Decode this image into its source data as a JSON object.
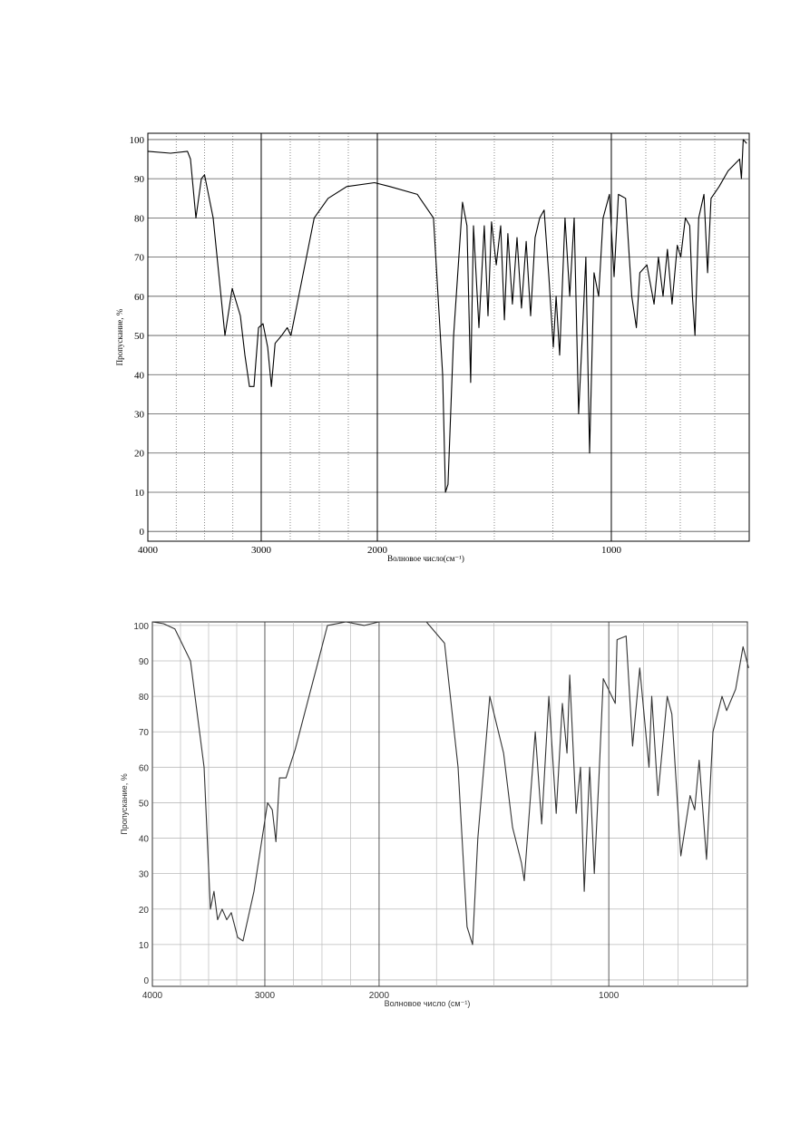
{
  "chart_data": [
    {
      "type": "line",
      "color": "#000000",
      "grid": true,
      "xlabel": "Волновое число(см⁻¹)",
      "ylabel": "Пропускание, %",
      "xlim": [
        4000,
        400
      ],
      "ylim": [
        -2.5,
        101.6
      ],
      "xticks": [
        4000,
        3000,
        2000,
        1000
      ],
      "yticks": [
        0,
        10,
        20,
        30,
        40,
        50,
        60,
        70,
        80,
        90,
        100
      ],
      "x": [
        4000,
        3800,
        3650,
        3624,
        3576,
        3528,
        3500,
        3424,
        3320,
        3256,
        3184,
        3144,
        3104,
        3064,
        3024,
        2984,
        2944,
        2912,
        2880,
        2824,
        2776,
        2744,
        2664,
        2544,
        2424,
        2264,
        2024,
        1946,
        1829,
        1760,
        1721,
        1709,
        1698,
        1674,
        1636,
        1617,
        1601,
        1589,
        1566,
        1543,
        1527,
        1512,
        1492,
        1473,
        1457,
        1442,
        1423,
        1403,
        1384,
        1364,
        1345,
        1326,
        1306,
        1287,
        1267,
        1248,
        1236,
        1221,
        1198,
        1178,
        1159,
        1140,
        1124,
        1109,
        1093,
        1074,
        1054,
        1035,
        1008,
        988,
        969,
        938,
        911,
        891,
        876,
        845,
        814,
        795,
        775,
        756,
        736,
        713,
        698,
        678,
        659,
        647,
        636,
        620,
        597,
        581,
        566,
        531,
        492,
        442,
        434,
        426,
        411
      ],
      "values": [
        97,
        96.5,
        97,
        95,
        80,
        90,
        91,
        80,
        50,
        62,
        55,
        45,
        37,
        37,
        52,
        53,
        47,
        37,
        48,
        50,
        52,
        50,
        62,
        80,
        85,
        88,
        89,
        88,
        86,
        80,
        40,
        10,
        12,
        50,
        84,
        78,
        38,
        78,
        52,
        78,
        55,
        79,
        68,
        78,
        54,
        76,
        58,
        75,
        57,
        74,
        55,
        75,
        80,
        82,
        65,
        47,
        60,
        45,
        80,
        60,
        80,
        30,
        50,
        70,
        20,
        66,
        60,
        80,
        86,
        65,
        86,
        85,
        60,
        52,
        66,
        68,
        58,
        70,
        60,
        72,
        58,
        73,
        70,
        80,
        78,
        60,
        50,
        80,
        86,
        66,
        85,
        88,
        92,
        95,
        90,
        100,
        99
      ]
    },
    {
      "type": "line",
      "color": "#333333",
      "grid": true,
      "xlabel": "Волновое число (см⁻¹)",
      "ylabel": "Пропускание, %",
      "xlim": [
        4000,
        400
      ],
      "ylim": [
        -1.8,
        101
      ],
      "xticks": [
        4000,
        3000,
        2000,
        1000
      ],
      "yticks": [
        0,
        10,
        20,
        30,
        40,
        50,
        60,
        70,
        80,
        90,
        100
      ],
      "x": [
        4000,
        3900,
        3800,
        3661,
        3540,
        3484,
        3452,
        3420,
        3380,
        3339,
        3298,
        3242,
        3194,
        3097,
        2976,
        2935,
        2903,
        2872,
        2815,
        2735,
        2613,
        2548,
        2452,
        2290,
        2129,
        2000,
        1794,
        1715,
        1656,
        1617,
        1593,
        1570,
        1518,
        1458,
        1419,
        1380,
        1368,
        1320,
        1292,
        1261,
        1229,
        1202,
        1182,
        1170,
        1142,
        1123,
        1107,
        1083,
        1063,
        1043,
        1024,
        972,
        964,
        925,
        897,
        866,
        826,
        814,
        787,
        747,
        727,
        688,
        648,
        628,
        609,
        577,
        549,
        510,
        490,
        451,
        419,
        395
      ],
      "values": [
        101,
        100.5,
        99,
        90,
        60,
        20,
        25,
        17,
        20,
        17,
        19,
        12,
        11,
        25,
        50,
        48,
        39,
        57,
        57,
        65,
        80,
        88,
        100,
        101,
        100,
        101,
        101,
        95,
        60,
        15,
        10,
        40,
        80,
        64,
        43,
        33,
        28,
        70,
        44,
        80,
        47,
        78,
        64,
        86,
        47,
        60,
        25,
        60,
        30,
        57,
        85,
        78,
        96,
        97,
        66,
        88,
        60,
        80,
        52,
        80,
        75,
        35,
        52,
        48,
        62,
        34,
        70,
        80,
        76,
        82,
        94,
        88
      ]
    }
  ]
}
